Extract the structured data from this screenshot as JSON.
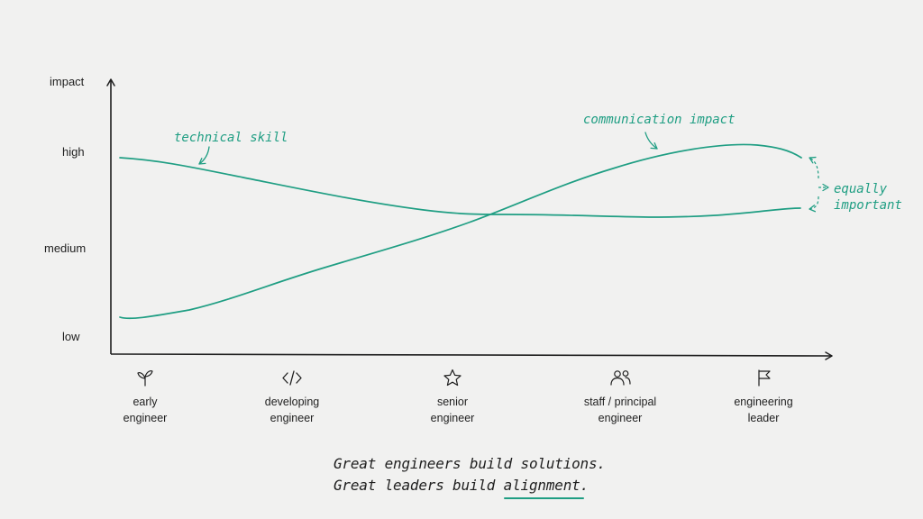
{
  "chart_data": {
    "type": "line",
    "ylabel": "impact",
    "y_ticks": [
      "high",
      "medium",
      "low"
    ],
    "categories": [
      "early engineer",
      "developing engineer",
      "senior engineer",
      "staff / principal engineer",
      "engineering leader"
    ],
    "category_labels": [
      [
        "early",
        "engineer"
      ],
      [
        "developing",
        "engineer"
      ],
      [
        "senior",
        "engineer"
      ],
      [
        "staff / principal",
        "engineer"
      ],
      [
        "engineering",
        "leader"
      ]
    ],
    "category_icons": [
      "sprout-icon",
      "code-icon",
      "star-icon",
      "people-icon",
      "flag-icon"
    ],
    "ylim": [
      0,
      3
    ],
    "series": [
      {
        "name": "technical skill",
        "values": [
          2.95,
          2.55,
          1.95,
          1.85,
          2.0
        ],
        "color": "#1f9e83"
      },
      {
        "name": "communication impact",
        "values": [
          0.2,
          0.8,
          1.95,
          2.85,
          3.0
        ],
        "color": "#1f9e83"
      }
    ],
    "annotations": {
      "end_note": [
        "equally",
        "important"
      ]
    },
    "grid": false,
    "legend": "inline labels"
  },
  "caption": {
    "line1": "Great engineers build solutions.",
    "line2_prefix": "Great leaders build ",
    "line2_highlight": "alignment",
    "line2_suffix": "."
  },
  "colors": {
    "accent": "#1f9e83",
    "ink": "#1f1f1f",
    "background": "#f1f1f0"
  }
}
